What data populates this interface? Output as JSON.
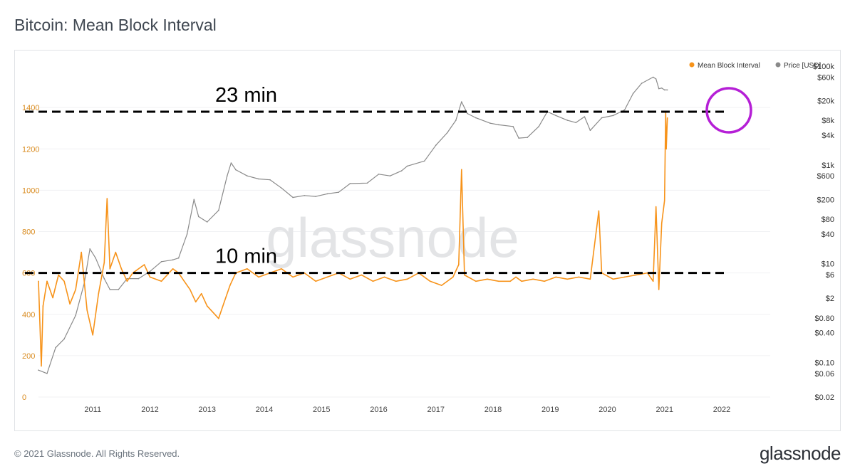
{
  "title": "Bitcoin: Mean Block Interval",
  "watermark": "glassnode",
  "footer": {
    "copyright": "© 2021 Glassnode. All Rights Reserved.",
    "logo": "glassnode"
  },
  "annotations": {
    "upper_label": "23 min",
    "lower_label": "10 min",
    "upper_value": 1380,
    "lower_value": 600,
    "circle_color": "#b51fd6"
  },
  "colors": {
    "interval": "#f7931a",
    "price": "#8a8a8a",
    "left_axis_text": "#d98b1f",
    "right_axis_text": "#333333",
    "grid": "#f0f1f3"
  },
  "chart_data": {
    "type": "line",
    "title": "Bitcoin: Mean Block Interval",
    "legend_position": "top-right",
    "grid": true,
    "x_ticks": [
      "2011",
      "2012",
      "2013",
      "2014",
      "2015",
      "2016",
      "2017",
      "2018",
      "2019",
      "2020",
      "2021",
      "2022"
    ],
    "x_range": [
      2010.55,
      2022.6
    ],
    "left_axis": {
      "ticks": [
        "0",
        "200",
        "400",
        "600",
        "800",
        "1000",
        "1200",
        "1400"
      ],
      "range": [
        0,
        1600
      ]
    },
    "right_axis": {
      "scale": "log",
      "ticks": [
        "$100k",
        "$60k",
        "$20k",
        "$8k",
        "$4k",
        "$1k",
        "$600",
        "$200",
        "$80",
        "$40",
        "$10",
        "$6",
        "$2",
        "$0.80",
        "$0.40",
        "$0.10",
        "$0.06",
        "$0.02"
      ],
      "tick_values": [
        100000,
        60000,
        20000,
        8000,
        4000,
        1000,
        600,
        200,
        80,
        40,
        10,
        6,
        2,
        0.8,
        0.4,
        0.1,
        0.06,
        0.02
      ],
      "range": [
        0.02,
        100000
      ]
    },
    "series": [
      {
        "name": "Mean Block Interval",
        "axis": "left",
        "points": [
          [
            2010.55,
            560
          ],
          [
            2010.6,
            150
          ],
          [
            2010.63,
            440
          ],
          [
            2010.7,
            560
          ],
          [
            2010.8,
            480
          ],
          [
            2010.9,
            590
          ],
          [
            2011.0,
            560
          ],
          [
            2011.1,
            450
          ],
          [
            2011.2,
            520
          ],
          [
            2011.3,
            700
          ],
          [
            2011.4,
            420
          ],
          [
            2011.5,
            300
          ],
          [
            2011.6,
            500
          ],
          [
            2011.7,
            650
          ],
          [
            2011.75,
            960
          ],
          [
            2011.8,
            620
          ],
          [
            2011.9,
            700
          ],
          [
            2012.0,
            620
          ],
          [
            2012.1,
            560
          ],
          [
            2012.2,
            600
          ],
          [
            2012.4,
            640
          ],
          [
            2012.5,
            580
          ],
          [
            2012.7,
            560
          ],
          [
            2012.9,
            620
          ],
          [
            2013.0,
            600
          ],
          [
            2013.1,
            560
          ],
          [
            2013.2,
            520
          ],
          [
            2013.3,
            460
          ],
          [
            2013.4,
            500
          ],
          [
            2013.5,
            440
          ],
          [
            2013.7,
            380
          ],
          [
            2013.8,
            460
          ],
          [
            2013.9,
            540
          ],
          [
            2014.0,
            600
          ],
          [
            2014.2,
            620
          ],
          [
            2014.4,
            580
          ],
          [
            2014.6,
            600
          ],
          [
            2014.8,
            620
          ],
          [
            2015.0,
            580
          ],
          [
            2015.2,
            600
          ],
          [
            2015.4,
            560
          ],
          [
            2015.6,
            580
          ],
          [
            2015.8,
            600
          ],
          [
            2016.0,
            570
          ],
          [
            2016.2,
            590
          ],
          [
            2016.4,
            560
          ],
          [
            2016.6,
            580
          ],
          [
            2016.8,
            560
          ],
          [
            2017.0,
            570
          ],
          [
            2017.2,
            600
          ],
          [
            2017.4,
            560
          ],
          [
            2017.6,
            540
          ],
          [
            2017.8,
            580
          ],
          [
            2017.9,
            640
          ],
          [
            2017.95,
            1100
          ],
          [
            2018.0,
            590
          ],
          [
            2018.2,
            560
          ],
          [
            2018.4,
            570
          ],
          [
            2018.6,
            560
          ],
          [
            2018.8,
            560
          ],
          [
            2018.9,
            580
          ],
          [
            2019.0,
            560
          ],
          [
            2019.2,
            570
          ],
          [
            2019.4,
            560
          ],
          [
            2019.6,
            580
          ],
          [
            2019.8,
            570
          ],
          [
            2020.0,
            580
          ],
          [
            2020.2,
            570
          ],
          [
            2020.35,
            900
          ],
          [
            2020.4,
            600
          ],
          [
            2020.6,
            570
          ],
          [
            2020.8,
            580
          ],
          [
            2021.0,
            590
          ],
          [
            2021.2,
            600
          ],
          [
            2021.3,
            560
          ],
          [
            2021.35,
            920
          ],
          [
            2021.4,
            520
          ],
          [
            2021.45,
            840
          ],
          [
            2021.5,
            950
          ],
          [
            2021.52,
            1380
          ],
          [
            2021.53,
            1200
          ],
          [
            2021.55,
            1350
          ]
        ]
      },
      {
        "name": "Price [USD]",
        "axis": "right",
        "points": [
          [
            2010.55,
            0.07
          ],
          [
            2010.7,
            0.06
          ],
          [
            2010.85,
            0.2
          ],
          [
            2011.0,
            0.3
          ],
          [
            2011.2,
            0.9
          ],
          [
            2011.35,
            4
          ],
          [
            2011.45,
            20
          ],
          [
            2011.55,
            13
          ],
          [
            2011.7,
            5
          ],
          [
            2011.8,
            3
          ],
          [
            2011.95,
            3
          ],
          [
            2012.1,
            5
          ],
          [
            2012.3,
            5
          ],
          [
            2012.5,
            7
          ],
          [
            2012.7,
            11
          ],
          [
            2012.9,
            12
          ],
          [
            2013.0,
            13
          ],
          [
            2013.15,
            40
          ],
          [
            2013.27,
            200
          ],
          [
            2013.35,
            90
          ],
          [
            2013.5,
            70
          ],
          [
            2013.7,
            120
          ],
          [
            2013.85,
            600
          ],
          [
            2013.92,
            1100
          ],
          [
            2014.0,
            800
          ],
          [
            2014.2,
            600
          ],
          [
            2014.4,
            520
          ],
          [
            2014.6,
            500
          ],
          [
            2014.8,
            340
          ],
          [
            2015.0,
            220
          ],
          [
            2015.2,
            240
          ],
          [
            2015.4,
            230
          ],
          [
            2015.6,
            260
          ],
          [
            2015.8,
            280
          ],
          [
            2016.0,
            420
          ],
          [
            2016.3,
            430
          ],
          [
            2016.5,
            650
          ],
          [
            2016.7,
            600
          ],
          [
            2016.9,
            760
          ],
          [
            2017.0,
            950
          ],
          [
            2017.3,
            1200
          ],
          [
            2017.5,
            2500
          ],
          [
            2017.7,
            4500
          ],
          [
            2017.85,
            8000
          ],
          [
            2017.95,
            19000
          ],
          [
            2018.05,
            11000
          ],
          [
            2018.2,
            9000
          ],
          [
            2018.45,
            7000
          ],
          [
            2018.6,
            6500
          ],
          [
            2018.85,
            6000
          ],
          [
            2018.95,
            3500
          ],
          [
            2019.1,
            3600
          ],
          [
            2019.3,
            6000
          ],
          [
            2019.45,
            12000
          ],
          [
            2019.6,
            10000
          ],
          [
            2019.8,
            8000
          ],
          [
            2019.95,
            7200
          ],
          [
            2020.1,
            9500
          ],
          [
            2020.2,
            5000
          ],
          [
            2020.4,
            9000
          ],
          [
            2020.6,
            10000
          ],
          [
            2020.8,
            13000
          ],
          [
            2020.95,
            28000
          ],
          [
            2021.1,
            45000
          ],
          [
            2021.3,
            60000
          ],
          [
            2021.35,
            55000
          ],
          [
            2021.4,
            35000
          ],
          [
            2021.45,
            36000
          ],
          [
            2021.5,
            33000
          ],
          [
            2021.55,
            33000
          ]
        ]
      }
    ]
  }
}
